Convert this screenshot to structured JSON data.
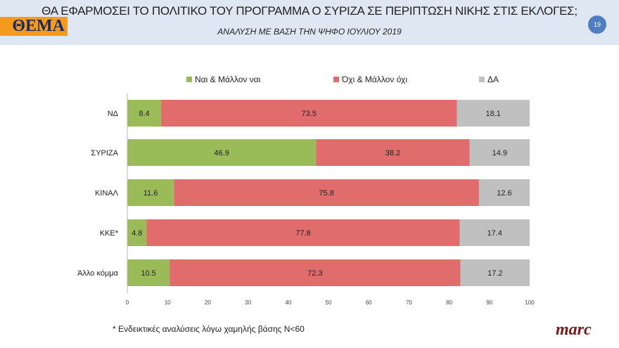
{
  "header": {
    "title": "ΘΑ ΕΦΑΡΜΟΣΕΙ ΤΟ ΠΟΛΙΤΙΚΟ ΤΟΥ ΠΡΟΓΡΑΜΜΑ Ο ΣΥΡΙΖΑ ΣΕ ΠΕΡΙΠΤΩΣΗ ΝΙΚΗΣ ΣΤΙΣ ΕΚΛΟΓΕΣ;",
    "subtitle": "ΑΝΑΛΥΣΗ ΜΕ ΒΑΣΗ ΤΗΝ ΨΗΦΟ ΙΟΥΛΙΟΥ 2019",
    "logo": "ΘΕΜΑ",
    "page_number": "19"
  },
  "footer": {
    "note": "* Ενδεικτικές αναλύσεις λόγω χαμηλής βάσης Ν<60",
    "brand": "marc"
  },
  "chart_data": {
    "type": "bar",
    "orientation": "horizontal",
    "stacked": true,
    "categories": [
      "ΝΔ",
      "ΣΥΡΙΖΑ",
      "ΚΙΝΑΛ",
      "ΚΚΕ*",
      "Άλλο κόμμα"
    ],
    "series": [
      {
        "name": "Ναι & Μάλλον ναι",
        "color": "#9bbb59",
        "values": [
          8.4,
          46.9,
          11.6,
          4.8,
          10.5
        ]
      },
      {
        "name": "Όχι & Μάλλον όχι",
        "color": "#e06c6c",
        "values": [
          73.5,
          38.2,
          75.8,
          77.8,
          72.3
        ]
      },
      {
        "name": "ΔΑ",
        "color": "#c0c0c0",
        "values": [
          18.1,
          14.9,
          12.6,
          17.4,
          17.2
        ]
      }
    ],
    "xlim": [
      0,
      100
    ],
    "xticks": [
      0,
      10,
      20,
      30,
      40,
      50,
      60,
      70,
      80,
      90,
      100
    ],
    "legend": "top",
    "grid": false
  }
}
